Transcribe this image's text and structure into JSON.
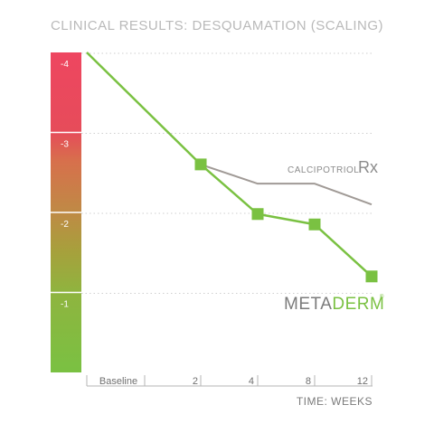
{
  "chart_data": {
    "type": "line",
    "title": "CLINICAL RESULTS: DESQUAMATION (SCALING)",
    "xlabel": "TIME: WEEKS",
    "ylabel": "",
    "categories": [
      "Baseline",
      "2",
      "4",
      "8",
      "12"
    ],
    "y_bands": [
      {
        "label": "-4",
        "color": "#ee4660"
      },
      {
        "label": "-3",
        "color": "#cf7648"
      },
      {
        "label": "-2",
        "color": "#a6a33c"
      },
      {
        "label": "-1",
        "color": "#7ac142"
      }
    ],
    "ylim": [
      -4,
      0
    ],
    "series": [
      {
        "name": "METADERM",
        "color": "#7ac142",
        "points": [
          [
            0,
            -4.0
          ],
          [
            2,
            -2.6
          ],
          [
            4,
            -1.98
          ],
          [
            8,
            -1.85
          ],
          [
            12,
            -1.2
          ]
        ]
      },
      {
        "name": "CALCIPOTRIOL",
        "color": "#a09a96",
        "points": [
          [
            2,
            -2.6
          ],
          [
            4,
            -2.36
          ],
          [
            8,
            -2.36
          ],
          [
            12,
            -2.1
          ]
        ]
      }
    ],
    "grid": true
  },
  "legend": {
    "calcipotriol": {
      "label": "CALCIPOTRIOL",
      "mark": "Rx"
    },
    "metaderm": {
      "part1": "META",
      "part2": "DERM",
      "mark": "®"
    }
  }
}
